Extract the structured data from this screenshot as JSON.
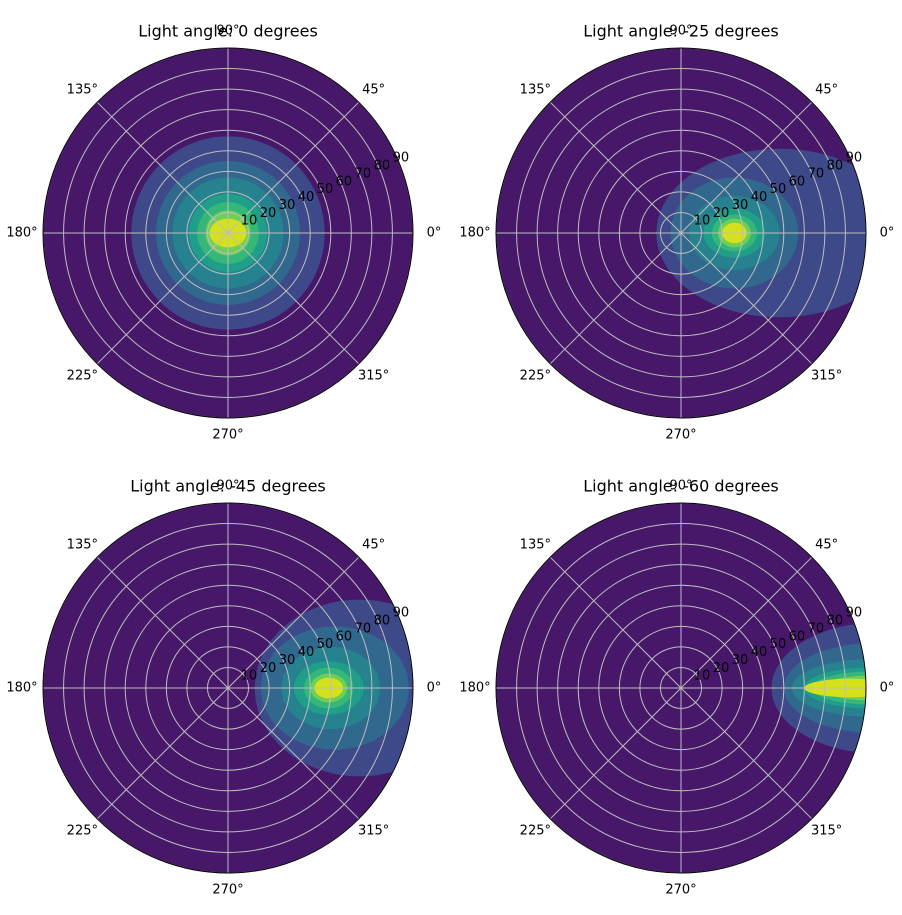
{
  "chart_data": [
    {
      "type": "polar-contour",
      "title": "Light angle: 0 degrees",
      "background": "#47186a",
      "grid": true,
      "rlim": [
        0,
        90
      ],
      "rticks": [
        10,
        20,
        30,
        40,
        50,
        60,
        70,
        80,
        90
      ],
      "thetaticks": [
        {
          "value": 0,
          "label": "0°"
        },
        {
          "value": 45,
          "label": "45°"
        },
        {
          "value": 90,
          "label": "90°"
        },
        {
          "value": 135,
          "label": "135°"
        },
        {
          "value": 180,
          "label": "180°"
        },
        {
          "value": 225,
          "label": "225°"
        },
        {
          "value": 270,
          "label": "270°"
        },
        {
          "value": 315,
          "label": "315°"
        }
      ],
      "contours": [
        {
          "color": "#3e4989",
          "center_r": 0,
          "rx": 47,
          "ry": 47
        },
        {
          "color": "#31688e",
          "center_r": 0,
          "rx": 35,
          "ry": 35
        },
        {
          "color": "#26828e",
          "center_r": 0,
          "rx": 27,
          "ry": 27
        },
        {
          "color": "#1f9e89",
          "center_r": 0,
          "rx": 19,
          "ry": 19
        },
        {
          "color": "#35b779",
          "center_r": 0,
          "rx": 15,
          "ry": 15
        },
        {
          "color": "#6ece58",
          "center_r": 0,
          "rx": 11,
          "ry": 11
        },
        {
          "color": "#d5e21a",
          "center_r": 0,
          "rx": 9,
          "ry": 7
        }
      ]
    },
    {
      "type": "polar-contour",
      "title": "Light angle: -25 degrees",
      "background": "#47186a",
      "grid": true,
      "rlim": [
        0,
        90
      ],
      "rticks": [
        10,
        20,
        30,
        40,
        50,
        60,
        70,
        80,
        90
      ],
      "thetaticks": [
        {
          "value": 0,
          "label": "0°"
        },
        {
          "value": 45,
          "label": "45°"
        },
        {
          "value": 90,
          "label": "90°"
        },
        {
          "value": 135,
          "label": "135°"
        },
        {
          "value": 180,
          "label": "180°"
        },
        {
          "value": 225,
          "label": "225°"
        },
        {
          "value": 270,
          "label": "270°"
        },
        {
          "value": 315,
          "label": "315°"
        }
      ],
      "contours": [
        {
          "color": "#3e4989",
          "center_r": 48,
          "rx": 60,
          "ry": 41
        },
        {
          "color": "#31688e",
          "center_r": 26,
          "rx": 31,
          "ry": 27
        },
        {
          "color": "#26828e",
          "center_r": 26,
          "rx": 22,
          "ry": 18
        },
        {
          "color": "#1f9e89",
          "center_r": 26,
          "rx": 15,
          "ry": 12
        },
        {
          "color": "#35b779",
          "center_r": 26,
          "rx": 11,
          "ry": 9
        },
        {
          "color": "#6ece58",
          "center_r": 26,
          "rx": 8,
          "ry": 7
        },
        {
          "color": "#d5e21a",
          "center_r": 26,
          "rx": 6,
          "ry": 5
        }
      ]
    },
    {
      "type": "polar-contour",
      "title": "Light angle: -45 degrees",
      "background": "#47186a",
      "grid": true,
      "rlim": [
        0,
        90
      ],
      "rticks": [
        10,
        20,
        30,
        40,
        50,
        60,
        70,
        80,
        90
      ],
      "thetaticks": [
        {
          "value": 0,
          "label": "0°"
        },
        {
          "value": 45,
          "label": "45°"
        },
        {
          "value": 90,
          "label": "90°"
        },
        {
          "value": 135,
          "label": "135°"
        },
        {
          "value": 180,
          "label": "180°"
        },
        {
          "value": 225,
          "label": "225°"
        },
        {
          "value": 270,
          "label": "270°"
        },
        {
          "value": 315,
          "label": "315°"
        }
      ],
      "contours": [
        {
          "color": "#3e4989",
          "center_r": 64,
          "rx": 51,
          "ry": 43
        },
        {
          "color": "#31688e",
          "center_r": 52,
          "rx": 36,
          "ry": 30
        },
        {
          "color": "#26828e",
          "center_r": 50,
          "rx": 24,
          "ry": 20
        },
        {
          "color": "#1f9e89",
          "center_r": 49,
          "rx": 17,
          "ry": 13
        },
        {
          "color": "#35b779",
          "center_r": 49,
          "rx": 12,
          "ry": 10
        },
        {
          "color": "#6ece58",
          "center_r": 49,
          "rx": 9,
          "ry": 7
        },
        {
          "color": "#d5e21a",
          "center_r": 49,
          "rx": 7,
          "ry": 5
        }
      ]
    },
    {
      "type": "polar-contour",
      "title": "Light angle: -60 degrees",
      "background": "#47186a",
      "grid": true,
      "rlim": [
        0,
        90
      ],
      "rticks": [
        10,
        20,
        30,
        40,
        50,
        60,
        70,
        80,
        90
      ],
      "thetaticks": [
        {
          "value": 0,
          "label": "0°"
        },
        {
          "value": 45,
          "label": "45°"
        },
        {
          "value": 90,
          "label": "90°"
        },
        {
          "value": 135,
          "label": "135°"
        },
        {
          "value": 180,
          "label": "180°"
        },
        {
          "value": 225,
          "label": "225°"
        },
        {
          "value": 270,
          "label": "270°"
        },
        {
          "value": 315,
          "label": "315°"
        }
      ],
      "contours": [
        {
          "color": "#3e4989",
          "center_r": 97,
          "rx": 53,
          "ry": 32
        },
        {
          "color": "#31688e",
          "center_r": 95,
          "rx": 45,
          "ry": 22
        },
        {
          "color": "#26828e",
          "center_r": 92,
          "rx": 38,
          "ry": 14
        },
        {
          "color": "#1f9e89",
          "center_r": 92,
          "rx": 32,
          "ry": 10
        },
        {
          "color": "#35b779",
          "center_r": 92,
          "rx": 28,
          "ry": 8
        },
        {
          "color": "#6ece58",
          "center_r": 92,
          "rx": 24,
          "ry": 6
        },
        {
          "color": "#d5e21a",
          "center_r": 82,
          "rx": 22,
          "ry": 4.5
        }
      ]
    }
  ]
}
